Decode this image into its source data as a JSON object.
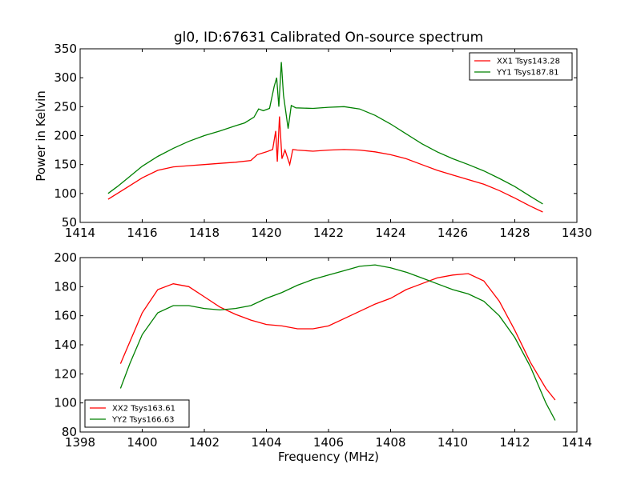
{
  "chart_data": [
    {
      "type": "line",
      "title": "gl0, ID:67631 Calibrated On-source spectrum",
      "xlabel": "",
      "ylabel": "Power in Kelvin",
      "xlim": [
        1414,
        1430
      ],
      "ylim": [
        50,
        350
      ],
      "x_ticks": [
        1414,
        1416,
        1418,
        1420,
        1422,
        1424,
        1426,
        1428,
        1430
      ],
      "y_ticks": [
        50,
        100,
        150,
        200,
        250,
        300,
        350
      ],
      "grid": false,
      "legend_position": "top-right",
      "series": [
        {
          "name": "XX1 Tsys143.28",
          "color": "#ff0000",
          "x": [
            1414.9,
            1415.2,
            1415.5,
            1416.0,
            1416.5,
            1417.0,
            1417.5,
            1418.0,
            1418.5,
            1419.0,
            1419.5,
            1419.7,
            1420.0,
            1420.2,
            1420.3,
            1420.35,
            1420.42,
            1420.5,
            1420.6,
            1420.75,
            1420.85,
            1421.0,
            1421.5,
            1422.0,
            1422.5,
            1423.0,
            1423.5,
            1424.0,
            1424.5,
            1425.0,
            1425.5,
            1426.0,
            1426.5,
            1427.0,
            1427.5,
            1428.0,
            1428.5,
            1428.9
          ],
          "y": [
            90,
            100,
            110,
            127,
            140,
            146,
            148,
            150,
            152,
            154,
            157,
            167,
            172,
            176,
            208,
            155,
            233,
            160,
            175,
            150,
            176,
            175,
            173,
            175,
            176,
            175,
            172,
            167,
            160,
            150,
            140,
            132,
            124,
            116,
            105,
            92,
            78,
            68
          ]
        },
        {
          "name": "YY1 Tsys187.81",
          "color": "#008000",
          "x": [
            1414.9,
            1415.2,
            1415.5,
            1416.0,
            1416.5,
            1417.0,
            1417.5,
            1418.0,
            1418.5,
            1419.0,
            1419.3,
            1419.6,
            1419.75,
            1419.9,
            1420.1,
            1420.25,
            1420.33,
            1420.4,
            1420.48,
            1420.55,
            1420.7,
            1420.8,
            1420.95,
            1421.5,
            1422.0,
            1422.5,
            1423.0,
            1423.5,
            1424.0,
            1424.5,
            1425.0,
            1425.5,
            1426.0,
            1426.5,
            1427.0,
            1427.5,
            1428.0,
            1428.5,
            1428.9
          ],
          "y": [
            100,
            112,
            125,
            147,
            164,
            178,
            190,
            200,
            208,
            217,
            222,
            232,
            246,
            243,
            247,
            285,
            300,
            250,
            327,
            270,
            212,
            252,
            248,
            247,
            249,
            250,
            246,
            235,
            220,
            203,
            186,
            172,
            160,
            150,
            139,
            126,
            112,
            95,
            82
          ]
        }
      ]
    },
    {
      "type": "line",
      "title": "",
      "xlabel": "Frequency (MHz)",
      "ylabel": "",
      "xlim": [
        1398,
        1414
      ],
      "ylim": [
        80,
        200
      ],
      "x_ticks": [
        1398,
        1400,
        1402,
        1404,
        1406,
        1408,
        1410,
        1412,
        1414
      ],
      "y_ticks": [
        80,
        100,
        120,
        140,
        160,
        180,
        200
      ],
      "grid": false,
      "legend_position": "bottom-left",
      "series": [
        {
          "name": "XX2 Tsys163.61",
          "color": "#ff0000",
          "x": [
            1399.3,
            1399.6,
            1400.0,
            1400.5,
            1401.0,
            1401.5,
            1402.0,
            1402.5,
            1403.0,
            1403.5,
            1404.0,
            1404.5,
            1405.0,
            1405.5,
            1406.0,
            1406.5,
            1407.0,
            1407.5,
            1408.0,
            1408.5,
            1409.0,
            1409.5,
            1410.0,
            1410.5,
            1411.0,
            1411.5,
            1412.0,
            1412.5,
            1413.0,
            1413.3
          ],
          "y": [
            127,
            142,
            162,
            178,
            182,
            180,
            173,
            166,
            161,
            157,
            154,
            153,
            151,
            151,
            153,
            158,
            163,
            168,
            172,
            178,
            182,
            186,
            188,
            189,
            184,
            170,
            150,
            128,
            110,
            102
          ]
        },
        {
          "name": "YY2 Tsys166.63",
          "color": "#008000",
          "x": [
            1399.3,
            1399.6,
            1400.0,
            1400.5,
            1401.0,
            1401.5,
            1402.0,
            1402.5,
            1403.0,
            1403.5,
            1404.0,
            1404.5,
            1405.0,
            1405.5,
            1406.0,
            1406.5,
            1407.0,
            1407.5,
            1408.0,
            1408.5,
            1409.0,
            1409.5,
            1410.0,
            1410.5,
            1411.0,
            1411.5,
            1412.0,
            1412.5,
            1413.0,
            1413.3
          ],
          "y": [
            110,
            127,
            147,
            162,
            167,
            167,
            165,
            164,
            165,
            167,
            172,
            176,
            181,
            185,
            188,
            191,
            194,
            195,
            193,
            190,
            186,
            182,
            178,
            175,
            170,
            160,
            145,
            125,
            100,
            88
          ]
        }
      ]
    }
  ]
}
